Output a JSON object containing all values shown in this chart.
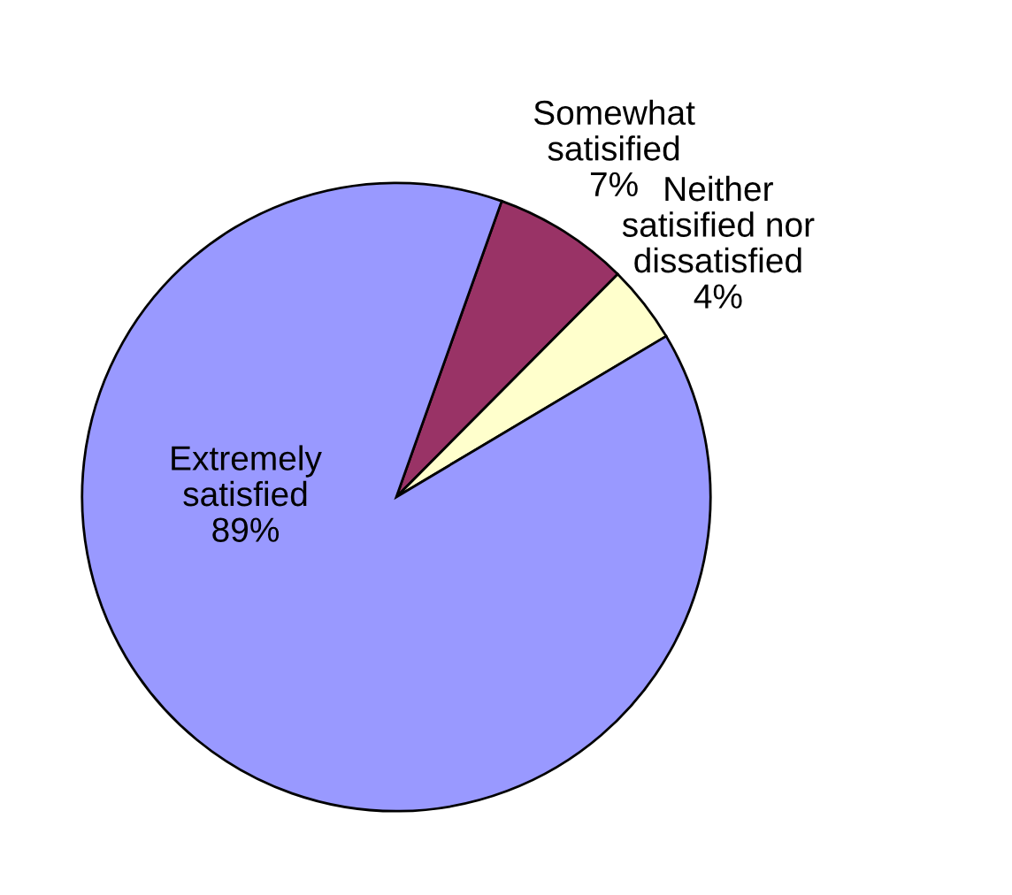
{
  "chart_data": {
    "type": "pie",
    "categories": [
      "Somewhat\nsatisified",
      "Neither\nsatisified nor\ndissatisfied",
      "Extremely\nsatisfied"
    ],
    "values": [
      7,
      4,
      89
    ],
    "value_labels": [
      "7%",
      "4%",
      "89%"
    ],
    "colors": [
      "#993366",
      "#ffffcc",
      "#9999ff"
    ]
  }
}
